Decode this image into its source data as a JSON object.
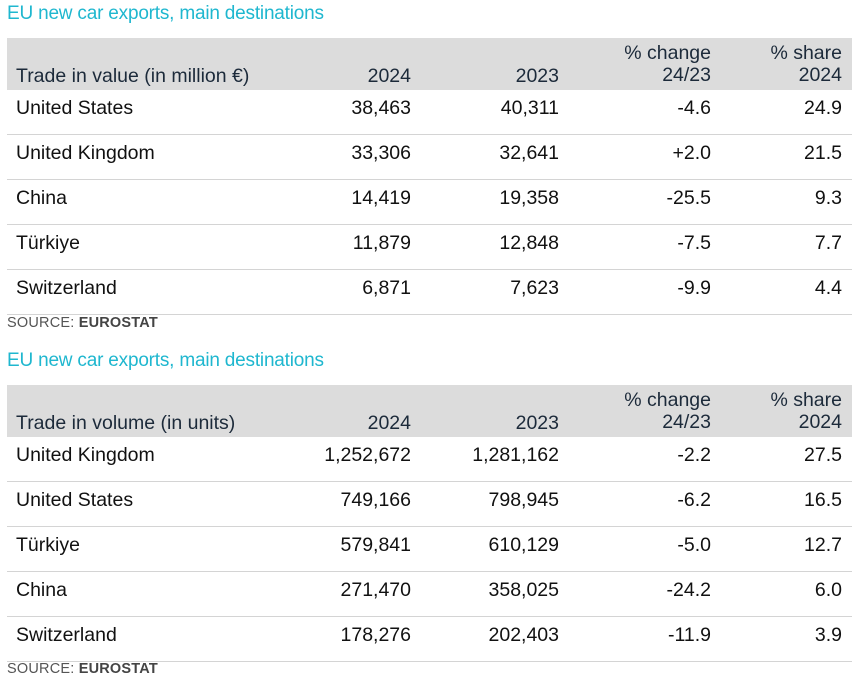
{
  "tables": [
    {
      "title": "EU new car exports, main destinations",
      "header": {
        "label": "Trade in value (in million €)",
        "col_2024": "2024",
        "col_2023": "2023",
        "change_line1": "% change",
        "change_line2": "24/23",
        "share_line1": "% share",
        "share_line2": "2024"
      },
      "rows": [
        {
          "country": "United States",
          "v2024": "38,463",
          "v2023": "40,311",
          "change": "-4.6",
          "share": "24.9"
        },
        {
          "country": "United Kingdom",
          "v2024": "33,306",
          "v2023": "32,641",
          "change": "+2.0",
          "share": "21.5"
        },
        {
          "country": "China",
          "v2024": "14,419",
          "v2023": "19,358",
          "change": "-25.5",
          "share": "9.3"
        },
        {
          "country": "Türkiye",
          "v2024": "11,879",
          "v2023": "12,848",
          "change": "-7.5",
          "share": "7.7"
        },
        {
          "country": "Switzerland",
          "v2024": "6,871",
          "v2023": "7,623",
          "change": "-9.9",
          "share": "4.4"
        }
      ],
      "source_label": "SOURCE: ",
      "source_name": "EUROSTAT"
    },
    {
      "title": "EU new car exports, main destinations",
      "header": {
        "label": "Trade in volume (in units)",
        "col_2024": "2024",
        "col_2023": "2023",
        "change_line1": "% change",
        "change_line2": "24/23",
        "share_line1": "% share",
        "share_line2": "2024"
      },
      "rows": [
        {
          "country": "United Kingdom",
          "v2024": "1,252,672",
          "v2023": "1,281,162",
          "change": "-2.2",
          "share": "27.5"
        },
        {
          "country": "United States",
          "v2024": "749,166",
          "v2023": "798,945",
          "change": "-6.2",
          "share": "16.5"
        },
        {
          "country": "Türkiye",
          "v2024": "579,841",
          "v2023": "610,129",
          "change": "-5.0",
          "share": "12.7"
        },
        {
          "country": "China",
          "v2024": "271,470",
          "v2023": "358,025",
          "change": "-24.2",
          "share": "6.0"
        },
        {
          "country": "Switzerland",
          "v2024": "178,276",
          "v2023": "202,403",
          "change": "-11.9",
          "share": "3.9"
        }
      ],
      "source_label": "SOURCE: ",
      "source_name": "EUROSTAT"
    }
  ]
}
